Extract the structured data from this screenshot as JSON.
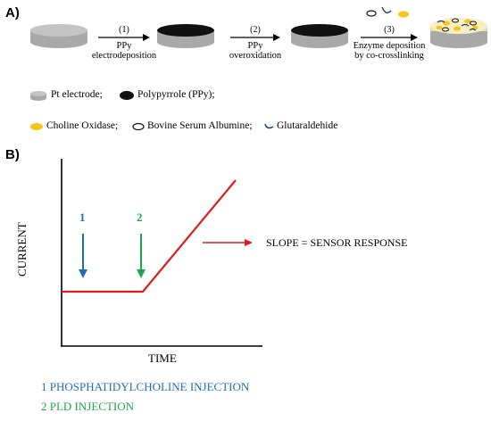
{
  "panel_a": {
    "label": "A)",
    "steps": [
      {
        "number": "(1)",
        "text_line1": "PPy",
        "text_line2": "electrodeposition"
      },
      {
        "number": "(2)",
        "text_line1": "PPy",
        "text_line2": "overoxidation"
      },
      {
        "number": "(3)",
        "text_line1": "Enzyme deposition",
        "text_line2": "by co-crosslinking"
      }
    ],
    "legend_row1": [
      {
        "icon": "pt-electrode-icon",
        "label": "Pt electrode;"
      },
      {
        "icon": "polypyrrole-icon",
        "label": "Polypyrrole (PPy);"
      }
    ],
    "legend_row2": [
      {
        "icon": "choline-oxidase-icon",
        "label": "Choline Oxidase;"
      },
      {
        "icon": "bsa-icon",
        "label": "Bovine Serum Albumine;"
      },
      {
        "icon": "glutaraldehide-icon",
        "label": "Glutaraldehide"
      }
    ],
    "colors": {
      "pt": "#b3b3b3",
      "ppy": "#111111",
      "choline_oxidase": "#f5c518",
      "enzyme_layer": "#f7eec4"
    }
  },
  "panel_b": {
    "label": "B)",
    "ylabel": "CURRENT",
    "xlabel": "TIME",
    "marker_1": "1",
    "marker_2": "2",
    "slope_label": "SLOPE = SENSOR RESPONSE",
    "caption_1": "1 PHOSPHATIDYLCHOLINE  INJECTION",
    "caption_2": "2 PLD INJECTION",
    "colors": {
      "trace": "#e11b1b",
      "marker_1": "#1f6fb5",
      "marker_2": "#1aa84a"
    }
  }
}
